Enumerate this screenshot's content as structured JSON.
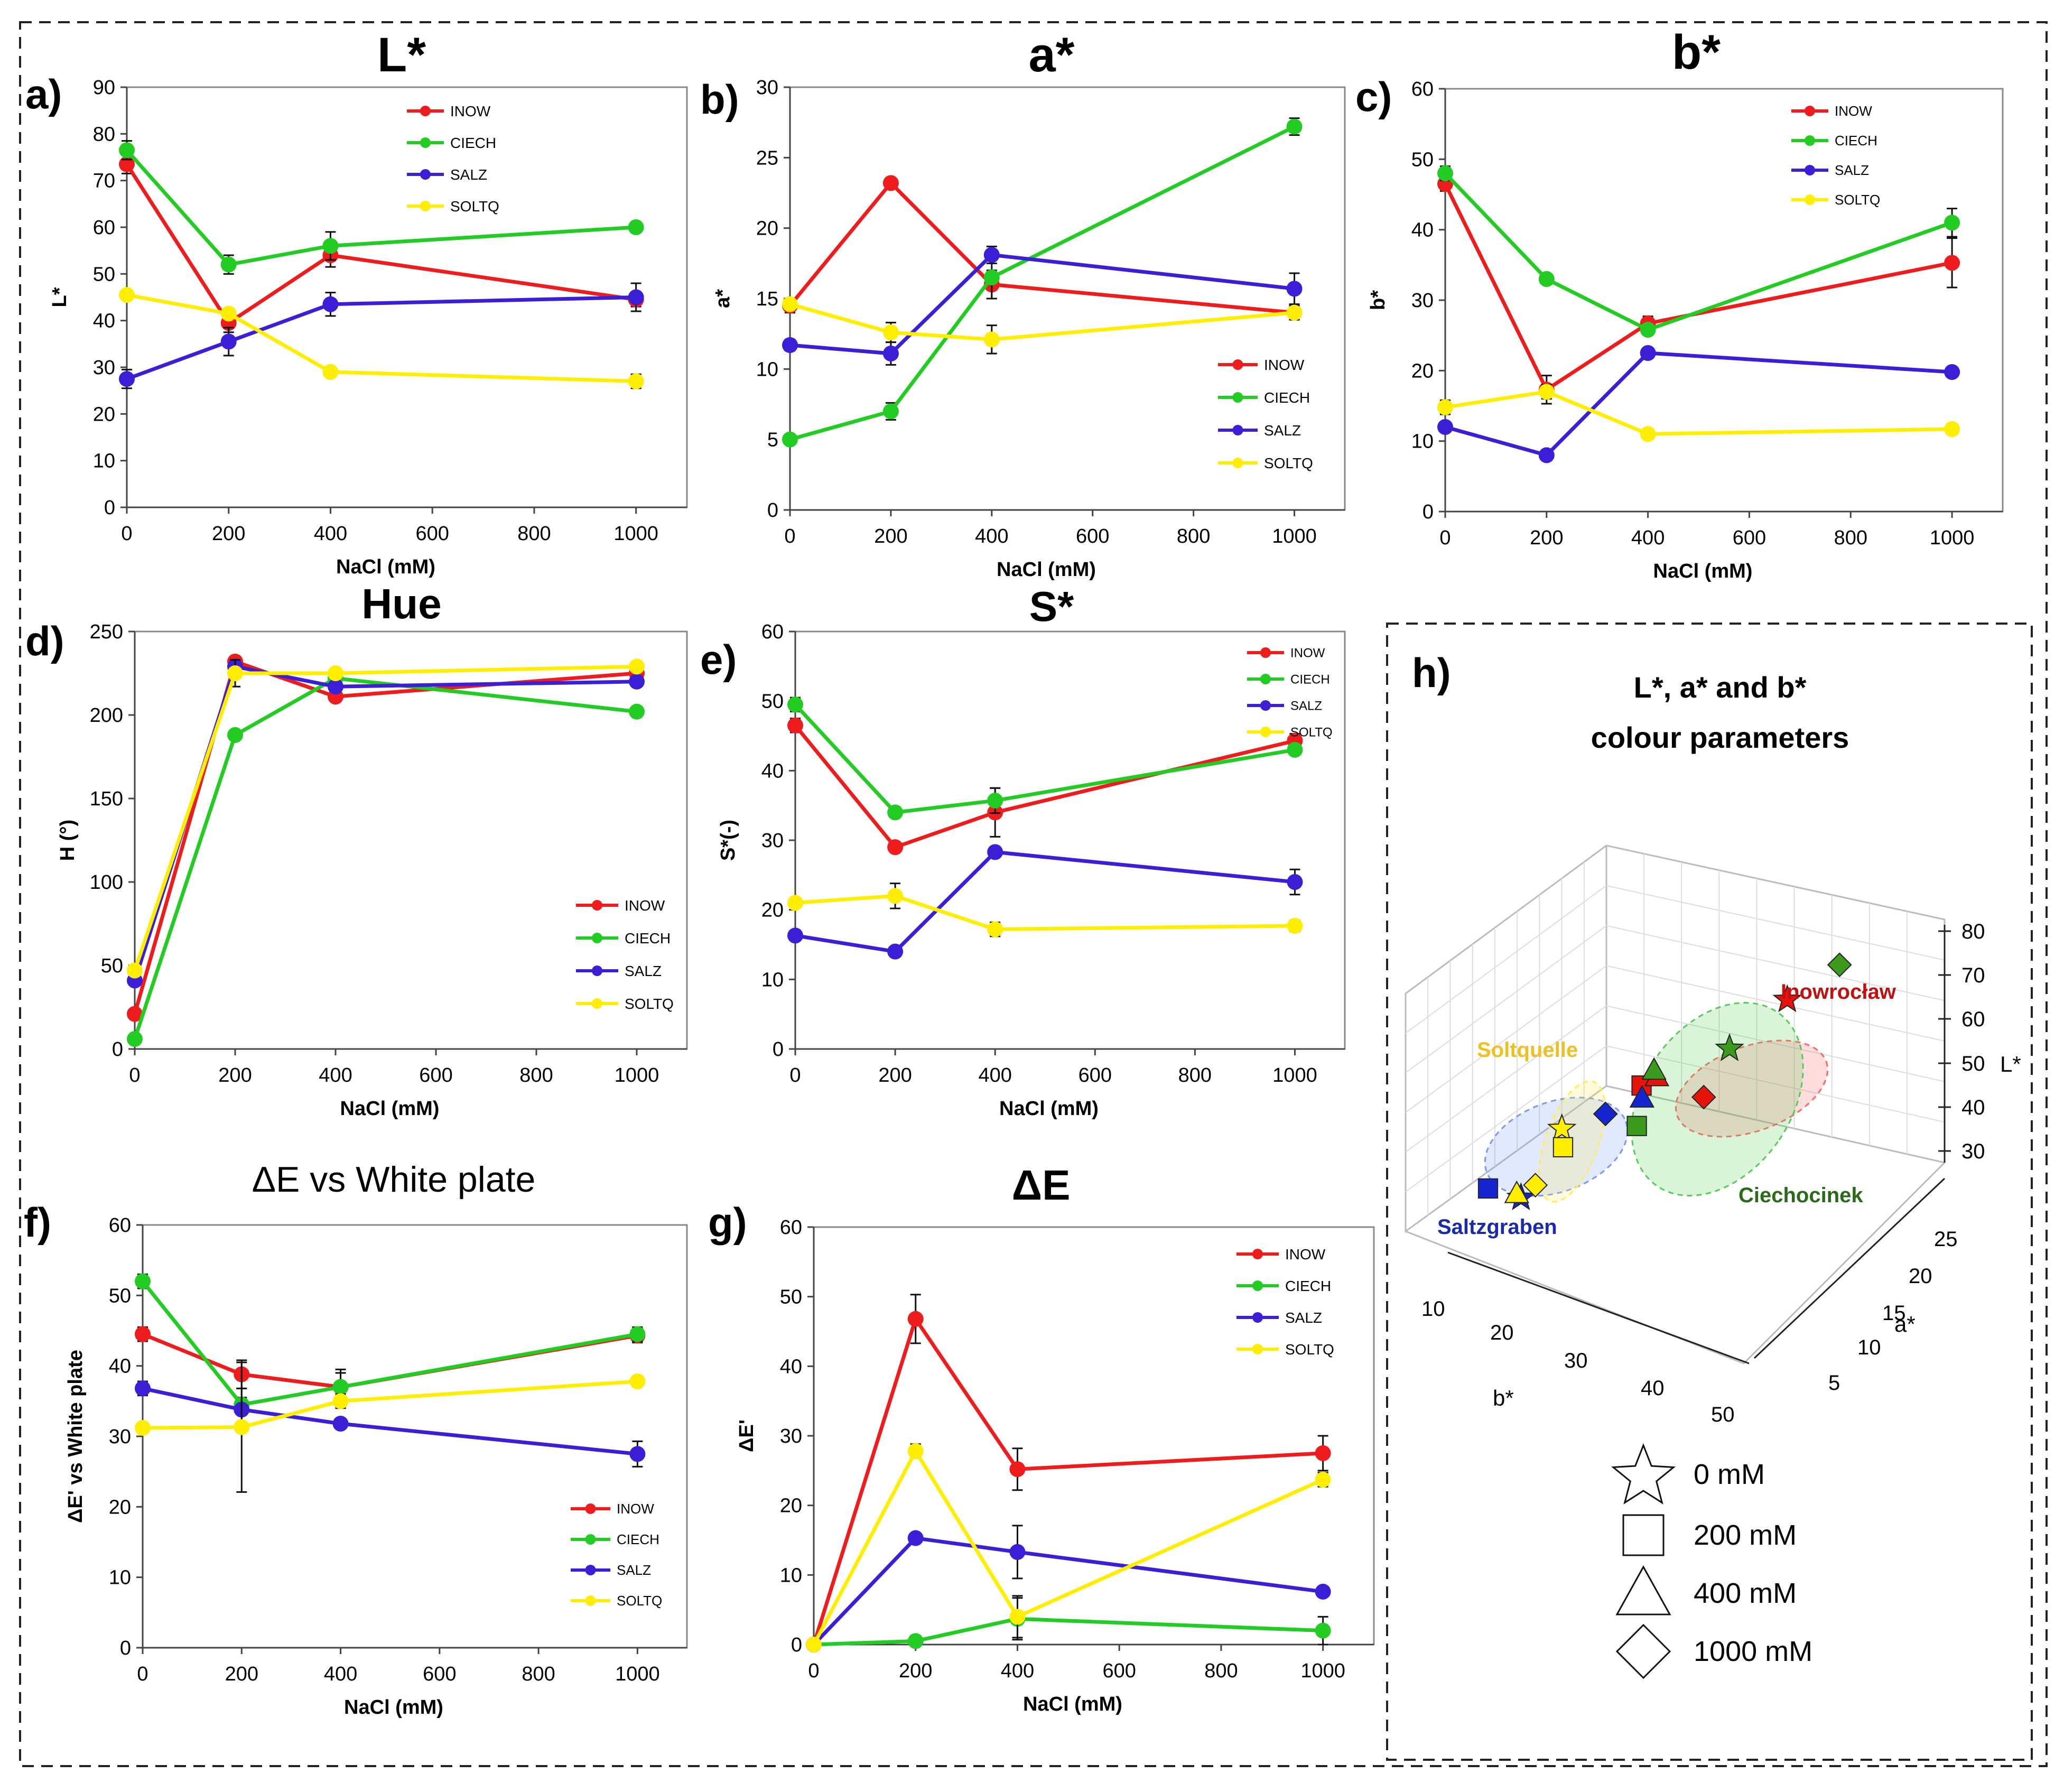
{
  "colors": {
    "INOW": "#ee1c1c",
    "CIECH": "#22cc22",
    "SALZ": "#3a1fd6",
    "SOLTQ": "#ffee00"
  },
  "chart_data": [
    {
      "id": "a",
      "panel_label": "a)",
      "title": "L*",
      "type": "line",
      "xlabel": "NaCl (mM)",
      "ylabel": "L*",
      "x": [
        0,
        200,
        400,
        1000
      ],
      "xlim": [
        0,
        1100
      ],
      "ylim": [
        0,
        90
      ],
      "xticks": [
        "0",
        "200",
        "400",
        "600",
        "800",
        "1000"
      ],
      "yticks": [
        "0",
        "10",
        "20",
        "30",
        "40",
        "50",
        "60",
        "70",
        "80",
        "90"
      ],
      "legend_pos": "top-right",
      "series": [
        {
          "name": "INOW",
          "values": [
            73.5,
            39.5,
            54,
            44.5
          ],
          "err": [
            2,
            2,
            2.5,
            1.5
          ]
        },
        {
          "name": "CIECH",
          "values": [
            76.5,
            52,
            56,
            60
          ],
          "err": [
            2,
            2,
            3,
            1
          ]
        },
        {
          "name": "SALZ",
          "values": [
            27.5,
            35.5,
            43.5,
            45
          ],
          "err": [
            2,
            3,
            2.5,
            3
          ]
        },
        {
          "name": "SOLTQ",
          "values": [
            45.5,
            41.5,
            29,
            27
          ],
          "err": [
            1,
            1,
            1,
            1.5
          ]
        }
      ]
    },
    {
      "id": "b",
      "panel_label": "b)",
      "title": "a*",
      "type": "line",
      "xlabel": "NaCl (mM)",
      "ylabel": "a*",
      "x": [
        0,
        200,
        400,
        1000
      ],
      "xlim": [
        0,
        1100
      ],
      "ylim": [
        0,
        30
      ],
      "xticks": [
        "0",
        "200",
        "400",
        "600",
        "800",
        "1000"
      ],
      "yticks": [
        "0",
        "5",
        "10",
        "15",
        "20",
        "25",
        "30"
      ],
      "legend_pos": "middle-right",
      "series": [
        {
          "name": "INOW",
          "values": [
            14.5,
            23.2,
            16,
            14
          ],
          "err": [
            0.5,
            0.3,
            1,
            0.5
          ]
        },
        {
          "name": "CIECH",
          "values": [
            5,
            7,
            16.5,
            27.2
          ],
          "err": [
            0.3,
            0.6,
            1.5,
            0.6
          ]
        },
        {
          "name": "SALZ",
          "values": [
            11.7,
            11.1,
            18.1,
            15.7
          ],
          "err": [
            0.4,
            0.8,
            0.6,
            1.1
          ]
        },
        {
          "name": "SOLTQ",
          "values": [
            14.6,
            12.6,
            12.1,
            14
          ],
          "err": [
            0.4,
            0.7,
            1,
            0.5
          ]
        }
      ]
    },
    {
      "id": "c",
      "panel_label": "c)",
      "title": "b*",
      "type": "line",
      "xlabel": "NaCl (mM)",
      "ylabel": "b*",
      "x": [
        0,
        200,
        400,
        1000
      ],
      "xlim": [
        0,
        1100
      ],
      "ylim": [
        0,
        60
      ],
      "xticks": [
        "0",
        "200",
        "400",
        "600",
        "800",
        "1000"
      ],
      "yticks": [
        "0",
        "10",
        "20",
        "30",
        "40",
        "50",
        "60"
      ],
      "legend_pos": "top-right",
      "series": [
        {
          "name": "INOW",
          "values": [
            46.5,
            17.3,
            26.7,
            35.3
          ],
          "err": [
            1,
            2,
            1,
            3.5
          ]
        },
        {
          "name": "CIECH",
          "values": [
            48,
            33,
            25.8,
            41
          ],
          "err": [
            1,
            0.5,
            0.6,
            2
          ]
        },
        {
          "name": "SALZ",
          "values": [
            12,
            8,
            22.5,
            19.8
          ],
          "err": [
            0.5,
            0.4,
            0.5,
            0.5
          ]
        },
        {
          "name": "SOLTQ",
          "values": [
            14.8,
            17,
            11,
            11.7
          ],
          "err": [
            1,
            1,
            0.5,
            0.5
          ]
        }
      ]
    },
    {
      "id": "d",
      "panel_label": "d)",
      "title": "Hue",
      "type": "line",
      "xlabel": "NaCl (mM)",
      "ylabel": "H (°)",
      "x": [
        0,
        200,
        400,
        1000
      ],
      "xlim": [
        0,
        1100
      ],
      "ylim": [
        0,
        250
      ],
      "xticks": [
        "0",
        "200",
        "400",
        "600",
        "800",
        "1000"
      ],
      "yticks": [
        "0",
        "50",
        "100",
        "150",
        "200",
        "250"
      ],
      "legend_pos": "bottom-right",
      "series": [
        {
          "name": "INOW",
          "values": [
            21,
            232,
            211,
            225
          ],
          "err": [
            2,
            3,
            3,
            3
          ]
        },
        {
          "name": "CIECH",
          "values": [
            6,
            188,
            222,
            202
          ],
          "err": [
            2,
            2,
            3,
            2
          ]
        },
        {
          "name": "SALZ",
          "values": [
            41,
            229,
            217,
            220
          ],
          "err": [
            2,
            4,
            3,
            2
          ]
        },
        {
          "name": "SOLTQ",
          "values": [
            47,
            225,
            225,
            229
          ],
          "err": [
            2,
            8,
            3,
            2
          ]
        }
      ]
    },
    {
      "id": "e",
      "panel_label": "e)",
      "title": "S*",
      "type": "line",
      "xlabel": "NaCl (mM)",
      "ylabel": "S*(-)",
      "x": [
        0,
        200,
        400,
        1000
      ],
      "xlim": [
        0,
        1100
      ],
      "ylim": [
        0,
        60
      ],
      "xticks": [
        "0",
        "200",
        "400",
        "600",
        "800",
        "1000"
      ],
      "yticks": [
        "0",
        "10",
        "20",
        "30",
        "40",
        "50",
        "60"
      ],
      "legend_pos": "top-right",
      "series": [
        {
          "name": "INOW",
          "values": [
            46.5,
            29,
            34,
            44.3
          ],
          "err": [
            1,
            0.5,
            3.5,
            1
          ]
        },
        {
          "name": "CIECH",
          "values": [
            49.5,
            34,
            35.7,
            43
          ],
          "err": [
            1,
            0.7,
            1.8,
            0.7
          ]
        },
        {
          "name": "SALZ",
          "values": [
            16.3,
            14,
            28.3,
            24
          ],
          "err": [
            0.5,
            0.3,
            0.5,
            1.8
          ]
        },
        {
          "name": "SOLTQ",
          "values": [
            21,
            22,
            17.2,
            17.7
          ],
          "err": [
            0.5,
            1.8,
            1,
            0.8
          ]
        }
      ]
    },
    {
      "id": "f",
      "panel_label": "f)",
      "title": "ΔE vs White plate",
      "type": "line",
      "xlabel": "NaCl (mM)",
      "ylabel": "ΔE' vs White plate",
      "x": [
        0,
        200,
        400,
        1000
      ],
      "xlim": [
        0,
        1100
      ],
      "ylim": [
        0,
        60
      ],
      "xticks": [
        "0",
        "200",
        "400",
        "600",
        "800",
        "1000"
      ],
      "yticks": [
        "0",
        "10",
        "20",
        "30",
        "40",
        "50",
        "60"
      ],
      "legend_pos": "bottom-right",
      "series": [
        {
          "name": "INOW",
          "values": [
            44.5,
            38.8,
            37,
            44.3
          ],
          "err": [
            1,
            2,
            2,
            1
          ]
        },
        {
          "name": "CIECH",
          "values": [
            52,
            34.5,
            37,
            44.5
          ],
          "err": [
            1,
            1,
            2.5,
            1
          ]
        },
        {
          "name": "SALZ",
          "values": [
            36.8,
            33.8,
            31.8,
            27.5
          ],
          "err": [
            1,
            3,
            0.5,
            1.8
          ]
        },
        {
          "name": "SOLTQ",
          "values": [
            31.2,
            31.3,
            35,
            37.8
          ],
          "err": [
            0.5,
            9.2,
            1,
            0.5
          ]
        }
      ]
    },
    {
      "id": "g",
      "panel_label": "g)",
      "title": "ΔE",
      "type": "line",
      "xlabel": "NaCl (mM)",
      "ylabel": "ΔE'",
      "x": [
        0,
        200,
        400,
        1000
      ],
      "xlim": [
        0,
        1100
      ],
      "ylim": [
        0,
        60
      ],
      "xticks": [
        "0",
        "200",
        "400",
        "600",
        "800",
        "1000"
      ],
      "yticks": [
        "0",
        "10",
        "20",
        "30",
        "40",
        "50",
        "60"
      ],
      "legend_pos": "top-right",
      "series": [
        {
          "name": "INOW",
          "values": [
            0,
            46.8,
            25.2,
            27.5
          ],
          "err": [
            0,
            3.5,
            3,
            2.5
          ]
        },
        {
          "name": "CIECH",
          "values": [
            0,
            0.5,
            3.7,
            2
          ],
          "err": [
            0,
            0.3,
            3,
            2
          ]
        },
        {
          "name": "SALZ",
          "values": [
            0,
            15.3,
            13.3,
            7.6
          ],
          "err": [
            0,
            0.5,
            3.8,
            0.5
          ]
        },
        {
          "name": "SOLTQ",
          "values": [
            0,
            27.8,
            4,
            23.7
          ],
          "err": [
            0,
            1,
            3,
            1
          ]
        }
      ]
    },
    {
      "id": "h",
      "panel_label": "h)",
      "type": "scatter3d",
      "title_line1": "L*, a* and b*",
      "title_line2": "colour parameters",
      "zlabel": "L*",
      "ylabel": "a*",
      "xlabel": "b*",
      "zticks": [
        "30",
        "40",
        "50",
        "60",
        "70",
        "80"
      ],
      "yticks": [
        "5",
        "10",
        "15",
        "20",
        "25"
      ],
      "xticks": [
        "10",
        "20",
        "30",
        "40",
        "50"
      ],
      "group_labels": [
        "Inowrocław",
        "Soltquelle",
        "Ciechocinek",
        "Saltzgraben"
      ],
      "legend": [
        {
          "shape": "star",
          "label": "0 mM"
        },
        {
          "shape": "square",
          "label": "200 mM"
        },
        {
          "shape": "triangle",
          "label": "400 mM"
        },
        {
          "shape": "diamond",
          "label": "1000 mM"
        }
      ],
      "points": [
        {
          "group": "INOW",
          "conc": "0 mM",
          "shape": "star",
          "b": 46.5,
          "a": 14.5,
          "L": 73.5
        },
        {
          "group": "INOW",
          "conc": "200 mM",
          "shape": "square",
          "b": 17.3,
          "a": 23.2,
          "L": 39.5
        },
        {
          "group": "INOW",
          "conc": "400 mM",
          "shape": "triangle",
          "b": 26.7,
          "a": 16,
          "L": 54
        },
        {
          "group": "INOW",
          "conc": "1000 mM",
          "shape": "diamond",
          "b": 35.3,
          "a": 14,
          "L": 44.5
        },
        {
          "group": "CIECH",
          "conc": "0 mM",
          "shape": "star",
          "b": 48,
          "a": 5,
          "L": 76.5
        },
        {
          "group": "CIECH",
          "conc": "200 mM",
          "shape": "square",
          "b": 33,
          "a": 7,
          "L": 52
        },
        {
          "group": "CIECH",
          "conc": "400 mM",
          "shape": "triangle",
          "b": 25.8,
          "a": 16.5,
          "L": 56
        },
        {
          "group": "CIECH",
          "conc": "1000 mM",
          "shape": "diamond",
          "b": 41,
          "a": 27.2,
          "L": 60
        },
        {
          "group": "SALZ",
          "conc": "0 mM",
          "shape": "star",
          "b": 12,
          "a": 11.7,
          "L": 27.5
        },
        {
          "group": "SALZ",
          "conc": "200 mM",
          "shape": "square",
          "b": 8,
          "a": 11.1,
          "L": 35.5
        },
        {
          "group": "SALZ",
          "conc": "400 mM",
          "shape": "triangle",
          "b": 22.5,
          "a": 18.1,
          "L": 43.5
        },
        {
          "group": "SALZ",
          "conc": "1000 mM",
          "shape": "diamond",
          "b": 19.8,
          "a": 15.7,
          "L": 45
        },
        {
          "group": "SOLTQ",
          "conc": "0 mM",
          "shape": "star",
          "b": 14.8,
          "a": 14.6,
          "L": 45.5
        },
        {
          "group": "SOLTQ",
          "conc": "200 mM",
          "shape": "square",
          "b": 17,
          "a": 12.6,
          "L": 41.5
        },
        {
          "group": "SOLTQ",
          "conc": "400 mM",
          "shape": "triangle",
          "b": 11,
          "a": 12.1,
          "L": 29
        },
        {
          "group": "SOLTQ",
          "conc": "1000 mM",
          "shape": "diamond",
          "b": 11.7,
          "a": 14,
          "L": 27
        }
      ]
    }
  ]
}
